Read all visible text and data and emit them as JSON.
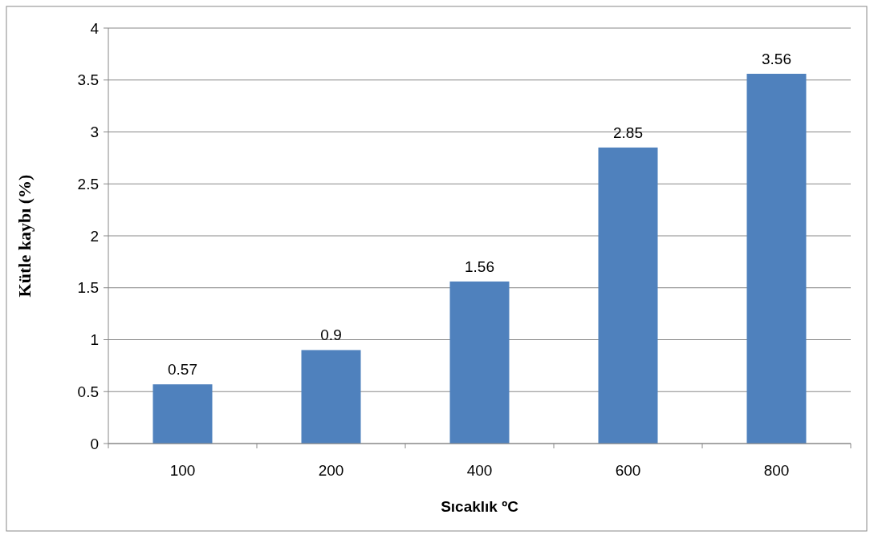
{
  "chart_data": {
    "type": "bar",
    "xlabel": "Sıcaklık ºC",
    "ylabel": "Kütle kaybı (%)",
    "categories": [
      "100",
      "200",
      "400",
      "600",
      "800"
    ],
    "series": [
      {
        "color": "#4f81bd",
        "values": [
          0.57,
          0.9,
          1.56,
          2.85,
          3.56
        ]
      }
    ],
    "ylim": [
      0,
      4
    ],
    "yticks": [
      0,
      {
        "value": 0.5,
        "label": "0.5"
      },
      1,
      {
        "value": 1.5,
        "label": "1.5"
      },
      2,
      {
        "value": 2.5,
        "label": "2.5"
      },
      3,
      {
        "value": 3.5,
        "label": "3.5"
      },
      4
    ],
    "grid": "y",
    "data_labels": true
  }
}
